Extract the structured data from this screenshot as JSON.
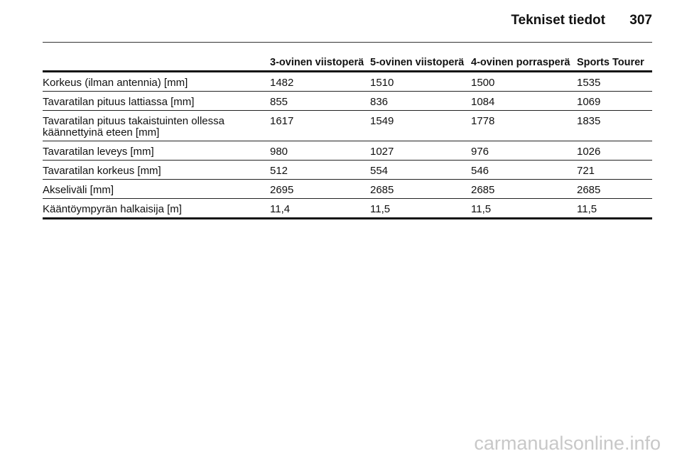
{
  "header": {
    "title": "Tekniset tiedot",
    "page": "307"
  },
  "table": {
    "columns": [
      "3-ovinen viistoperä",
      "5-ovinen viistoperä",
      "4-ovinen porrasperä",
      "Sports Tourer"
    ],
    "rows": [
      [
        "Korkeus (ilman antennia) [mm]",
        "1482",
        "1510",
        "1500",
        "1535"
      ],
      [
        "Tavaratilan pituus lattiassa [mm]",
        "855",
        "836",
        "1084",
        "1069"
      ],
      [
        "Tavaratilan pituus takaistuinten ollessa käännettyinä eteen [mm]",
        "1617",
        "1549",
        "1778",
        "1835"
      ],
      [
        "Tavaratilan leveys [mm]",
        "980",
        "1027",
        "976",
        "1026"
      ],
      [
        "Tavaratilan korkeus [mm]",
        "512",
        "554",
        "546",
        "721"
      ],
      [
        "Akseliväli [mm]",
        "2695",
        "2685",
        "2685",
        "2685"
      ],
      [
        "Kääntöympyrän halkaisija [m]",
        "11,4",
        "11,5",
        "11,5",
        "11,5"
      ]
    ]
  },
  "watermark": "carmanualsonline.info"
}
